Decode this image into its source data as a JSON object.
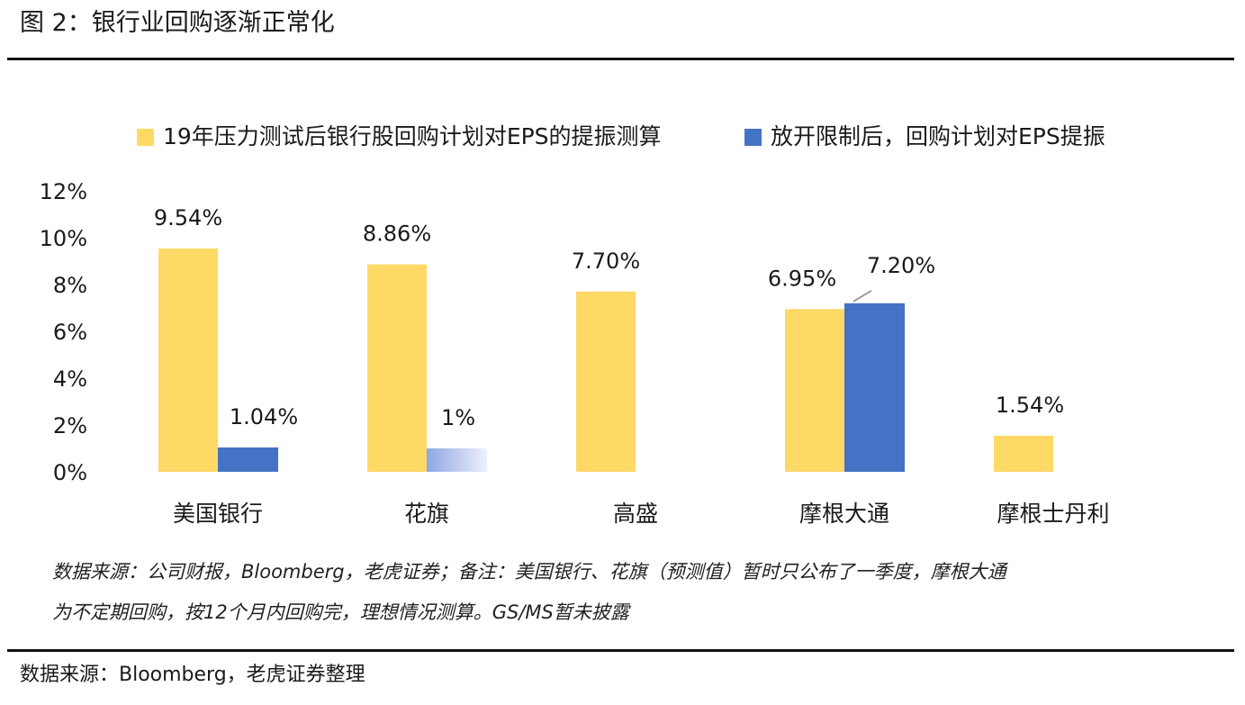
{
  "header": {
    "title": "图 2：银行业回购逐渐正常化"
  },
  "footer": {
    "source": "数据来源：Bloomberg，老虎证券整理"
  },
  "note": "数据来源：公司财报，Bloomberg，老虎证券；备注：美国银行、花旗（预测值）暂时只公布了一季度，摩根大通\n为不定期回购，按12个月内回购完，理想情况测算。GS/MS暂未披露",
  "colors": {
    "series1": "#FFD966",
    "series2": "#4472C4",
    "series2_faded": "#BDC8EE",
    "axis": "#1a1a1a"
  },
  "chart_data": {
    "type": "bar",
    "categories": [
      "美国银行",
      "花旗",
      "高盛",
      "摩根大通",
      "摩根士丹利"
    ],
    "series": [
      {
        "name": "19年压力测试后银行股回购计划对EPS的提振测算",
        "values": [
          9.54,
          8.86,
          7.7,
          6.95,
          1.54
        ],
        "labels": [
          "9.54%",
          "8.86%",
          "7.70%",
          "6.95%",
          "1.54%"
        ]
      },
      {
        "name": "放开限制后，回购计划对EPS提振",
        "values": [
          1.04,
          1.0,
          null,
          7.2,
          null
        ],
        "labels": [
          "1.04%",
          "1%",
          "",
          "7.20%",
          ""
        ]
      }
    ],
    "ylim": [
      0,
      12
    ],
    "yticks": [
      "0%",
      "2%",
      "4%",
      "6%",
      "8%",
      "10%",
      "12%"
    ],
    "legend_position": "top",
    "grid": false
  }
}
